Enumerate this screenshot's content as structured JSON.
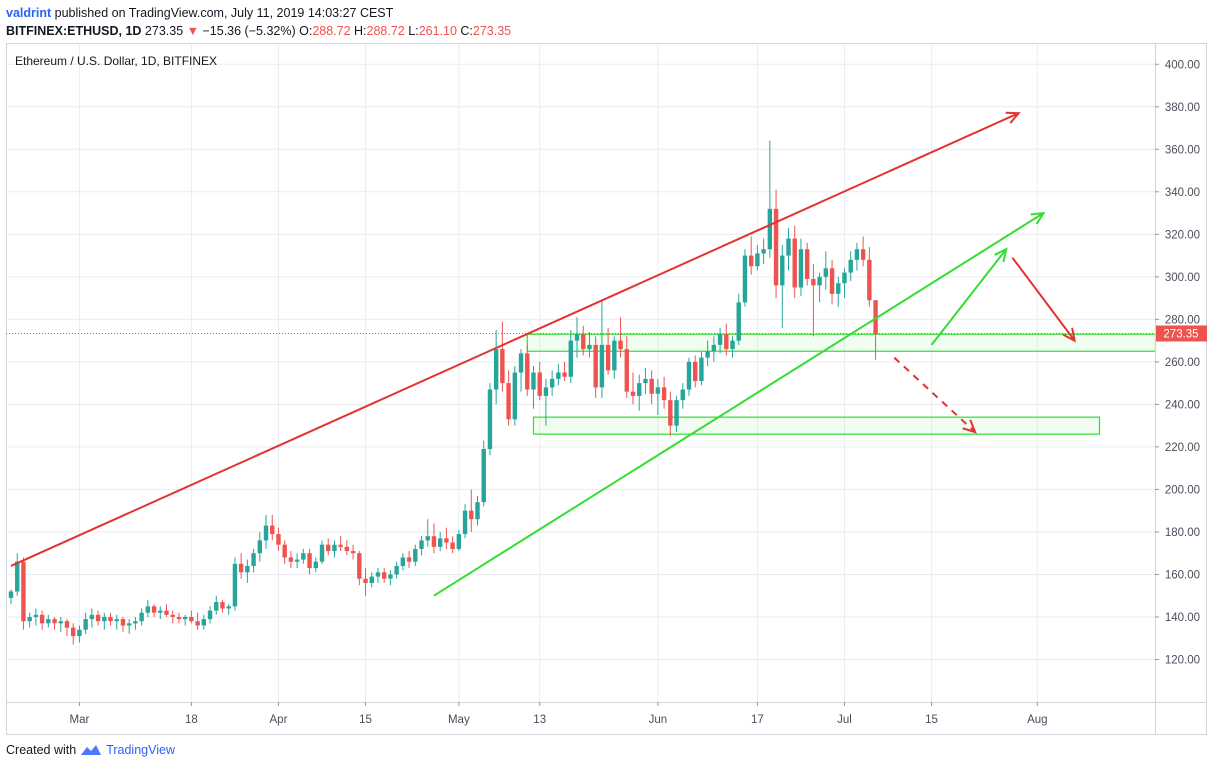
{
  "header": {
    "author": "valdrint",
    "published_text": "published on TradingView.com, July 11, 2019 14:03:27 CEST",
    "symbol": "BITFINEX:ETHUSD, 1D",
    "last": "273.35",
    "change": "−15.36 (−5.32%)",
    "o_label": "O:",
    "o_value": "288.72",
    "h_label": "H:",
    "h_value": "288.72",
    "l_label": "L:",
    "l_value": "261.10",
    "c_label": "C:",
    "c_value": "273.35"
  },
  "footer": {
    "created_with": "Created with",
    "brand": "TradingView"
  },
  "colors": {
    "bull": "#26a69a",
    "bear": "#ef5350",
    "green_line": "#33dd33",
    "red_line": "#e33333",
    "grid": "#e9ecf1",
    "price_tag": "#ef5350"
  },
  "chart_data": {
    "type": "candlestick",
    "title": "Ethereum / U.S. Dollar, 1D, BITFINEX",
    "ylim": [
      100,
      410
    ],
    "y_ticks": [
      120,
      140,
      160,
      180,
      200,
      220,
      240,
      260,
      280,
      300,
      320,
      340,
      360,
      380,
      400
    ],
    "x_ticks": [
      {
        "label": "Mar",
        "day": 11
      },
      {
        "label": "18",
        "day": 29
      },
      {
        "label": "Apr",
        "day": 43
      },
      {
        "label": "15",
        "day": 57
      },
      {
        "label": "May",
        "day": 72
      },
      {
        "label": "13",
        "day": 85
      },
      {
        "label": "Jun",
        "day": 104
      },
      {
        "label": "17",
        "day": 120
      },
      {
        "label": "Jul",
        "day": 134
      },
      {
        "label": "15",
        "day": 148
      },
      {
        "label": "Aug",
        "day": 165
      }
    ],
    "last_price": "273.35",
    "last_value": 273.35,
    "candles": [
      {
        "day": 0,
        "o": 149,
        "h": 153,
        "l": 146,
        "c": 152
      },
      {
        "day": 1,
        "o": 152,
        "h": 170,
        "l": 150,
        "c": 166
      },
      {
        "day": 2,
        "o": 166,
        "h": 168,
        "l": 134,
        "c": 138
      },
      {
        "day": 3,
        "o": 138,
        "h": 142,
        "l": 135,
        "c": 140
      },
      {
        "day": 4,
        "o": 140,
        "h": 144,
        "l": 136,
        "c": 141
      },
      {
        "day": 5,
        "o": 141,
        "h": 143,
        "l": 134,
        "c": 137
      },
      {
        "day": 6,
        "o": 137,
        "h": 141,
        "l": 135,
        "c": 139
      },
      {
        "day": 7,
        "o": 139,
        "h": 140,
        "l": 134,
        "c": 137
      },
      {
        "day": 8,
        "o": 137,
        "h": 140,
        "l": 133,
        "c": 138
      },
      {
        "day": 9,
        "o": 138,
        "h": 139,
        "l": 131,
        "c": 135
      },
      {
        "day": 10,
        "o": 135,
        "h": 137,
        "l": 127,
        "c": 131
      },
      {
        "day": 11,
        "o": 131,
        "h": 136,
        "l": 128,
        "c": 134
      },
      {
        "day": 12,
        "o": 134,
        "h": 142,
        "l": 132,
        "c": 139
      },
      {
        "day": 13,
        "o": 139,
        "h": 144,
        "l": 135,
        "c": 141
      },
      {
        "day": 14,
        "o": 141,
        "h": 143,
        "l": 136,
        "c": 138
      },
      {
        "day": 15,
        "o": 138,
        "h": 142,
        "l": 134,
        "c": 140
      },
      {
        "day": 16,
        "o": 140,
        "h": 142,
        "l": 136,
        "c": 138
      },
      {
        "day": 17,
        "o": 138,
        "h": 141,
        "l": 134,
        "c": 139
      },
      {
        "day": 18,
        "o": 139,
        "h": 140,
        "l": 133,
        "c": 136
      },
      {
        "day": 19,
        "o": 136,
        "h": 139,
        "l": 132,
        "c": 137
      },
      {
        "day": 20,
        "o": 137,
        "h": 140,
        "l": 134,
        "c": 138
      },
      {
        "day": 21,
        "o": 138,
        "h": 144,
        "l": 136,
        "c": 142
      },
      {
        "day": 22,
        "o": 142,
        "h": 148,
        "l": 140,
        "c": 145
      },
      {
        "day": 23,
        "o": 145,
        "h": 146,
        "l": 140,
        "c": 142
      },
      {
        "day": 24,
        "o": 142,
        "h": 145,
        "l": 139,
        "c": 143
      },
      {
        "day": 25,
        "o": 143,
        "h": 146,
        "l": 140,
        "c": 141
      },
      {
        "day": 26,
        "o": 141,
        "h": 143,
        "l": 137,
        "c": 140
      },
      {
        "day": 27,
        "o": 140,
        "h": 142,
        "l": 137,
        "c": 139
      },
      {
        "day": 28,
        "o": 139,
        "h": 141,
        "l": 136,
        "c": 140
      },
      {
        "day": 29,
        "o": 140,
        "h": 143,
        "l": 137,
        "c": 138
      },
      {
        "day": 30,
        "o": 138,
        "h": 142,
        "l": 134,
        "c": 136
      },
      {
        "day": 31,
        "o": 136,
        "h": 141,
        "l": 134,
        "c": 139
      },
      {
        "day": 32,
        "o": 139,
        "h": 145,
        "l": 137,
        "c": 143
      },
      {
        "day": 33,
        "o": 143,
        "h": 150,
        "l": 141,
        "c": 147
      },
      {
        "day": 34,
        "o": 147,
        "h": 148,
        "l": 142,
        "c": 144
      },
      {
        "day": 35,
        "o": 144,
        "h": 146,
        "l": 141,
        "c": 145
      },
      {
        "day": 36,
        "o": 145,
        "h": 168,
        "l": 143,
        "c": 165
      },
      {
        "day": 37,
        "o": 165,
        "h": 170,
        "l": 158,
        "c": 161
      },
      {
        "day": 38,
        "o": 161,
        "h": 167,
        "l": 156,
        "c": 164
      },
      {
        "day": 39,
        "o": 164,
        "h": 172,
        "l": 161,
        "c": 170
      },
      {
        "day": 40,
        "o": 170,
        "h": 180,
        "l": 166,
        "c": 176
      },
      {
        "day": 41,
        "o": 176,
        "h": 188,
        "l": 172,
        "c": 183
      },
      {
        "day": 42,
        "o": 183,
        "h": 188,
        "l": 176,
        "c": 179
      },
      {
        "day": 43,
        "o": 179,
        "h": 182,
        "l": 171,
        "c": 174
      },
      {
        "day": 44,
        "o": 174,
        "h": 176,
        "l": 165,
        "c": 168
      },
      {
        "day": 45,
        "o": 168,
        "h": 171,
        "l": 163,
        "c": 166
      },
      {
        "day": 46,
        "o": 166,
        "h": 170,
        "l": 163,
        "c": 167
      },
      {
        "day": 47,
        "o": 167,
        "h": 172,
        "l": 165,
        "c": 170
      },
      {
        "day": 48,
        "o": 170,
        "h": 172,
        "l": 160,
        "c": 163
      },
      {
        "day": 49,
        "o": 163,
        "h": 168,
        "l": 161,
        "c": 166
      },
      {
        "day": 50,
        "o": 166,
        "h": 176,
        "l": 165,
        "c": 174
      },
      {
        "day": 51,
        "o": 174,
        "h": 177,
        "l": 169,
        "c": 171
      },
      {
        "day": 52,
        "o": 171,
        "h": 176,
        "l": 168,
        "c": 174
      },
      {
        "day": 53,
        "o": 174,
        "h": 178,
        "l": 171,
        "c": 173
      },
      {
        "day": 54,
        "o": 173,
        "h": 176,
        "l": 169,
        "c": 171
      },
      {
        "day": 55,
        "o": 171,
        "h": 174,
        "l": 167,
        "c": 170
      },
      {
        "day": 56,
        "o": 170,
        "h": 171,
        "l": 155,
        "c": 158
      },
      {
        "day": 57,
        "o": 158,
        "h": 163,
        "l": 150,
        "c": 156
      },
      {
        "day": 58,
        "o": 156,
        "h": 161,
        "l": 154,
        "c": 159
      },
      {
        "day": 59,
        "o": 159,
        "h": 163,
        "l": 156,
        "c": 161
      },
      {
        "day": 60,
        "o": 161,
        "h": 163,
        "l": 156,
        "c": 158
      },
      {
        "day": 61,
        "o": 158,
        "h": 162,
        "l": 155,
        "c": 160
      },
      {
        "day": 62,
        "o": 160,
        "h": 166,
        "l": 158,
        "c": 164
      },
      {
        "day": 63,
        "o": 164,
        "h": 170,
        "l": 162,
        "c": 168
      },
      {
        "day": 64,
        "o": 168,
        "h": 171,
        "l": 163,
        "c": 166
      },
      {
        "day": 65,
        "o": 166,
        "h": 174,
        "l": 164,
        "c": 172
      },
      {
        "day": 66,
        "o": 172,
        "h": 178,
        "l": 169,
        "c": 176
      },
      {
        "day": 67,
        "o": 176,
        "h": 186,
        "l": 173,
        "c": 178
      },
      {
        "day": 68,
        "o": 178,
        "h": 184,
        "l": 170,
        "c": 173
      },
      {
        "day": 69,
        "o": 173,
        "h": 180,
        "l": 171,
        "c": 177
      },
      {
        "day": 70,
        "o": 177,
        "h": 182,
        "l": 172,
        "c": 175
      },
      {
        "day": 71,
        "o": 175,
        "h": 178,
        "l": 170,
        "c": 172
      },
      {
        "day": 72,
        "o": 172,
        "h": 181,
        "l": 171,
        "c": 179
      },
      {
        "day": 73,
        "o": 179,
        "h": 193,
        "l": 177,
        "c": 190
      },
      {
        "day": 74,
        "o": 190,
        "h": 200,
        "l": 180,
        "c": 186
      },
      {
        "day": 75,
        "o": 186,
        "h": 197,
        "l": 183,
        "c": 194
      },
      {
        "day": 76,
        "o": 194,
        "h": 223,
        "l": 192,
        "c": 219
      },
      {
        "day": 77,
        "o": 219,
        "h": 250,
        "l": 216,
        "c": 247
      },
      {
        "day": 78,
        "o": 247,
        "h": 275,
        "l": 240,
        "c": 266
      },
      {
        "day": 79,
        "o": 266,
        "h": 279,
        "l": 246,
        "c": 250
      },
      {
        "day": 80,
        "o": 250,
        "h": 256,
        "l": 230,
        "c": 233
      },
      {
        "day": 81,
        "o": 233,
        "h": 258,
        "l": 230,
        "c": 255
      },
      {
        "day": 82,
        "o": 255,
        "h": 266,
        "l": 246,
        "c": 264
      },
      {
        "day": 83,
        "o": 264,
        "h": 268,
        "l": 244,
        "c": 247
      },
      {
        "day": 84,
        "o": 247,
        "h": 258,
        "l": 238,
        "c": 255
      },
      {
        "day": 85,
        "o": 255,
        "h": 260,
        "l": 242,
        "c": 244
      },
      {
        "day": 86,
        "o": 244,
        "h": 252,
        "l": 230,
        "c": 248
      },
      {
        "day": 87,
        "o": 248,
        "h": 256,
        "l": 244,
        "c": 252
      },
      {
        "day": 88,
        "o": 252,
        "h": 259,
        "l": 249,
        "c": 255
      },
      {
        "day": 89,
        "o": 255,
        "h": 260,
        "l": 251,
        "c": 253
      },
      {
        "day": 90,
        "o": 253,
        "h": 275,
        "l": 250,
        "c": 270
      },
      {
        "day": 91,
        "o": 270,
        "h": 281,
        "l": 262,
        "c": 273
      },
      {
        "day": 92,
        "o": 273,
        "h": 277,
        "l": 263,
        "c": 266
      },
      {
        "day": 93,
        "o": 266,
        "h": 274,
        "l": 262,
        "c": 268
      },
      {
        "day": 94,
        "o": 268,
        "h": 272,
        "l": 243,
        "c": 248
      },
      {
        "day": 95,
        "o": 248,
        "h": 289,
        "l": 243,
        "c": 268
      },
      {
        "day": 96,
        "o": 268,
        "h": 276,
        "l": 254,
        "c": 256
      },
      {
        "day": 97,
        "o": 256,
        "h": 272,
        "l": 252,
        "c": 270
      },
      {
        "day": 98,
        "o": 270,
        "h": 281,
        "l": 262,
        "c": 266
      },
      {
        "day": 99,
        "o": 266,
        "h": 272,
        "l": 243,
        "c": 246
      },
      {
        "day": 100,
        "o": 246,
        "h": 255,
        "l": 240,
        "c": 244
      },
      {
        "day": 101,
        "o": 244,
        "h": 254,
        "l": 237,
        "c": 250
      },
      {
        "day": 102,
        "o": 250,
        "h": 257,
        "l": 245,
        "c": 252
      },
      {
        "day": 103,
        "o": 252,
        "h": 256,
        "l": 240,
        "c": 245
      },
      {
        "day": 104,
        "o": 245,
        "h": 252,
        "l": 235,
        "c": 248
      },
      {
        "day": 105,
        "o": 248,
        "h": 253,
        "l": 238,
        "c": 242
      },
      {
        "day": 106,
        "o": 242,
        "h": 246,
        "l": 225,
        "c": 230
      },
      {
        "day": 107,
        "o": 230,
        "h": 244,
        "l": 227,
        "c": 242
      },
      {
        "day": 108,
        "o": 242,
        "h": 250,
        "l": 238,
        "c": 247
      },
      {
        "day": 109,
        "o": 247,
        "h": 262,
        "l": 244,
        "c": 260
      },
      {
        "day": 110,
        "o": 260,
        "h": 263,
        "l": 248,
        "c": 251
      },
      {
        "day": 111,
        "o": 251,
        "h": 265,
        "l": 249,
        "c": 262
      },
      {
        "day": 112,
        "o": 262,
        "h": 270,
        "l": 258,
        "c": 265
      },
      {
        "day": 113,
        "o": 265,
        "h": 272,
        "l": 260,
        "c": 268
      },
      {
        "day": 114,
        "o": 268,
        "h": 276,
        "l": 264,
        "c": 273
      },
      {
        "day": 115,
        "o": 273,
        "h": 278,
        "l": 263,
        "c": 266
      },
      {
        "day": 116,
        "o": 266,
        "h": 272,
        "l": 262,
        "c": 270
      },
      {
        "day": 117,
        "o": 270,
        "h": 292,
        "l": 268,
        "c": 288
      },
      {
        "day": 118,
        "o": 288,
        "h": 313,
        "l": 286,
        "c": 310
      },
      {
        "day": 119,
        "o": 310,
        "h": 319,
        "l": 301,
        "c": 305
      },
      {
        "day": 120,
        "o": 305,
        "h": 315,
        "l": 303,
        "c": 311
      },
      {
        "day": 121,
        "o": 311,
        "h": 318,
        "l": 306,
        "c": 313
      },
      {
        "day": 122,
        "o": 313,
        "h": 364,
        "l": 309,
        "c": 332
      },
      {
        "day": 123,
        "o": 332,
        "h": 341,
        "l": 290,
        "c": 296
      },
      {
        "day": 124,
        "o": 296,
        "h": 315,
        "l": 276,
        "c": 310
      },
      {
        "day": 125,
        "o": 310,
        "h": 323,
        "l": 303,
        "c": 318
      },
      {
        "day": 126,
        "o": 318,
        "h": 324,
        "l": 290,
        "c": 295
      },
      {
        "day": 127,
        "o": 295,
        "h": 318,
        "l": 291,
        "c": 313
      },
      {
        "day": 128,
        "o": 313,
        "h": 316,
        "l": 296,
        "c": 299
      },
      {
        "day": 129,
        "o": 299,
        "h": 306,
        "l": 272,
        "c": 296
      },
      {
        "day": 130,
        "o": 296,
        "h": 302,
        "l": 288,
        "c": 300
      },
      {
        "day": 131,
        "o": 300,
        "h": 312,
        "l": 294,
        "c": 304
      },
      {
        "day": 132,
        "o": 304,
        "h": 308,
        "l": 287,
        "c": 292
      },
      {
        "day": 133,
        "o": 292,
        "h": 300,
        "l": 286,
        "c": 297
      },
      {
        "day": 134,
        "o": 297,
        "h": 304,
        "l": 290,
        "c": 302
      },
      {
        "day": 135,
        "o": 302,
        "h": 312,
        "l": 298,
        "c": 308
      },
      {
        "day": 136,
        "o": 308,
        "h": 316,
        "l": 303,
        "c": 313
      },
      {
        "day": 137,
        "o": 313,
        "h": 319,
        "l": 305,
        "c": 308
      },
      {
        "day": 138,
        "o": 308,
        "h": 314,
        "l": 286,
        "c": 289
      },
      {
        "day": 139,
        "o": 289,
        "h": 289,
        "l": 261,
        "c": 273
      }
    ],
    "trendlines": [
      {
        "name": "upper-resistance-line",
        "color": "red",
        "arrow": true,
        "from": {
          "day": 0,
          "value": 164
        },
        "to": {
          "day": 162,
          "value": 377
        }
      },
      {
        "name": "lower-support-line",
        "color": "green",
        "arrow": true,
        "from": {
          "day": 68,
          "value": 150
        },
        "to": {
          "day": 166,
          "value": 330
        }
      },
      {
        "name": "bounce-up-arrow",
        "color": "green",
        "arrow": true,
        "from": {
          "day": 148,
          "value": 268
        },
        "to": {
          "day": 160,
          "value": 313
        }
      },
      {
        "name": "drop-down-arrow",
        "color": "red",
        "arrow": true,
        "from": {
          "day": 161,
          "value": 309
        },
        "to": {
          "day": 171,
          "value": 270
        }
      },
      {
        "name": "dashed-drop-arrow",
        "color": "red",
        "arrow": true,
        "dashed": true,
        "from": {
          "day": 142,
          "value": 262
        },
        "to": {
          "day": 155,
          "value": 227
        }
      }
    ],
    "zones": [
      {
        "name": "upper-support-zone",
        "from_day": 83,
        "to_day": 184,
        "low": 265,
        "high": 273
      },
      {
        "name": "lower-support-zone",
        "from_day": 84,
        "to_day": 175,
        "low": 226,
        "high": 234
      }
    ]
  }
}
